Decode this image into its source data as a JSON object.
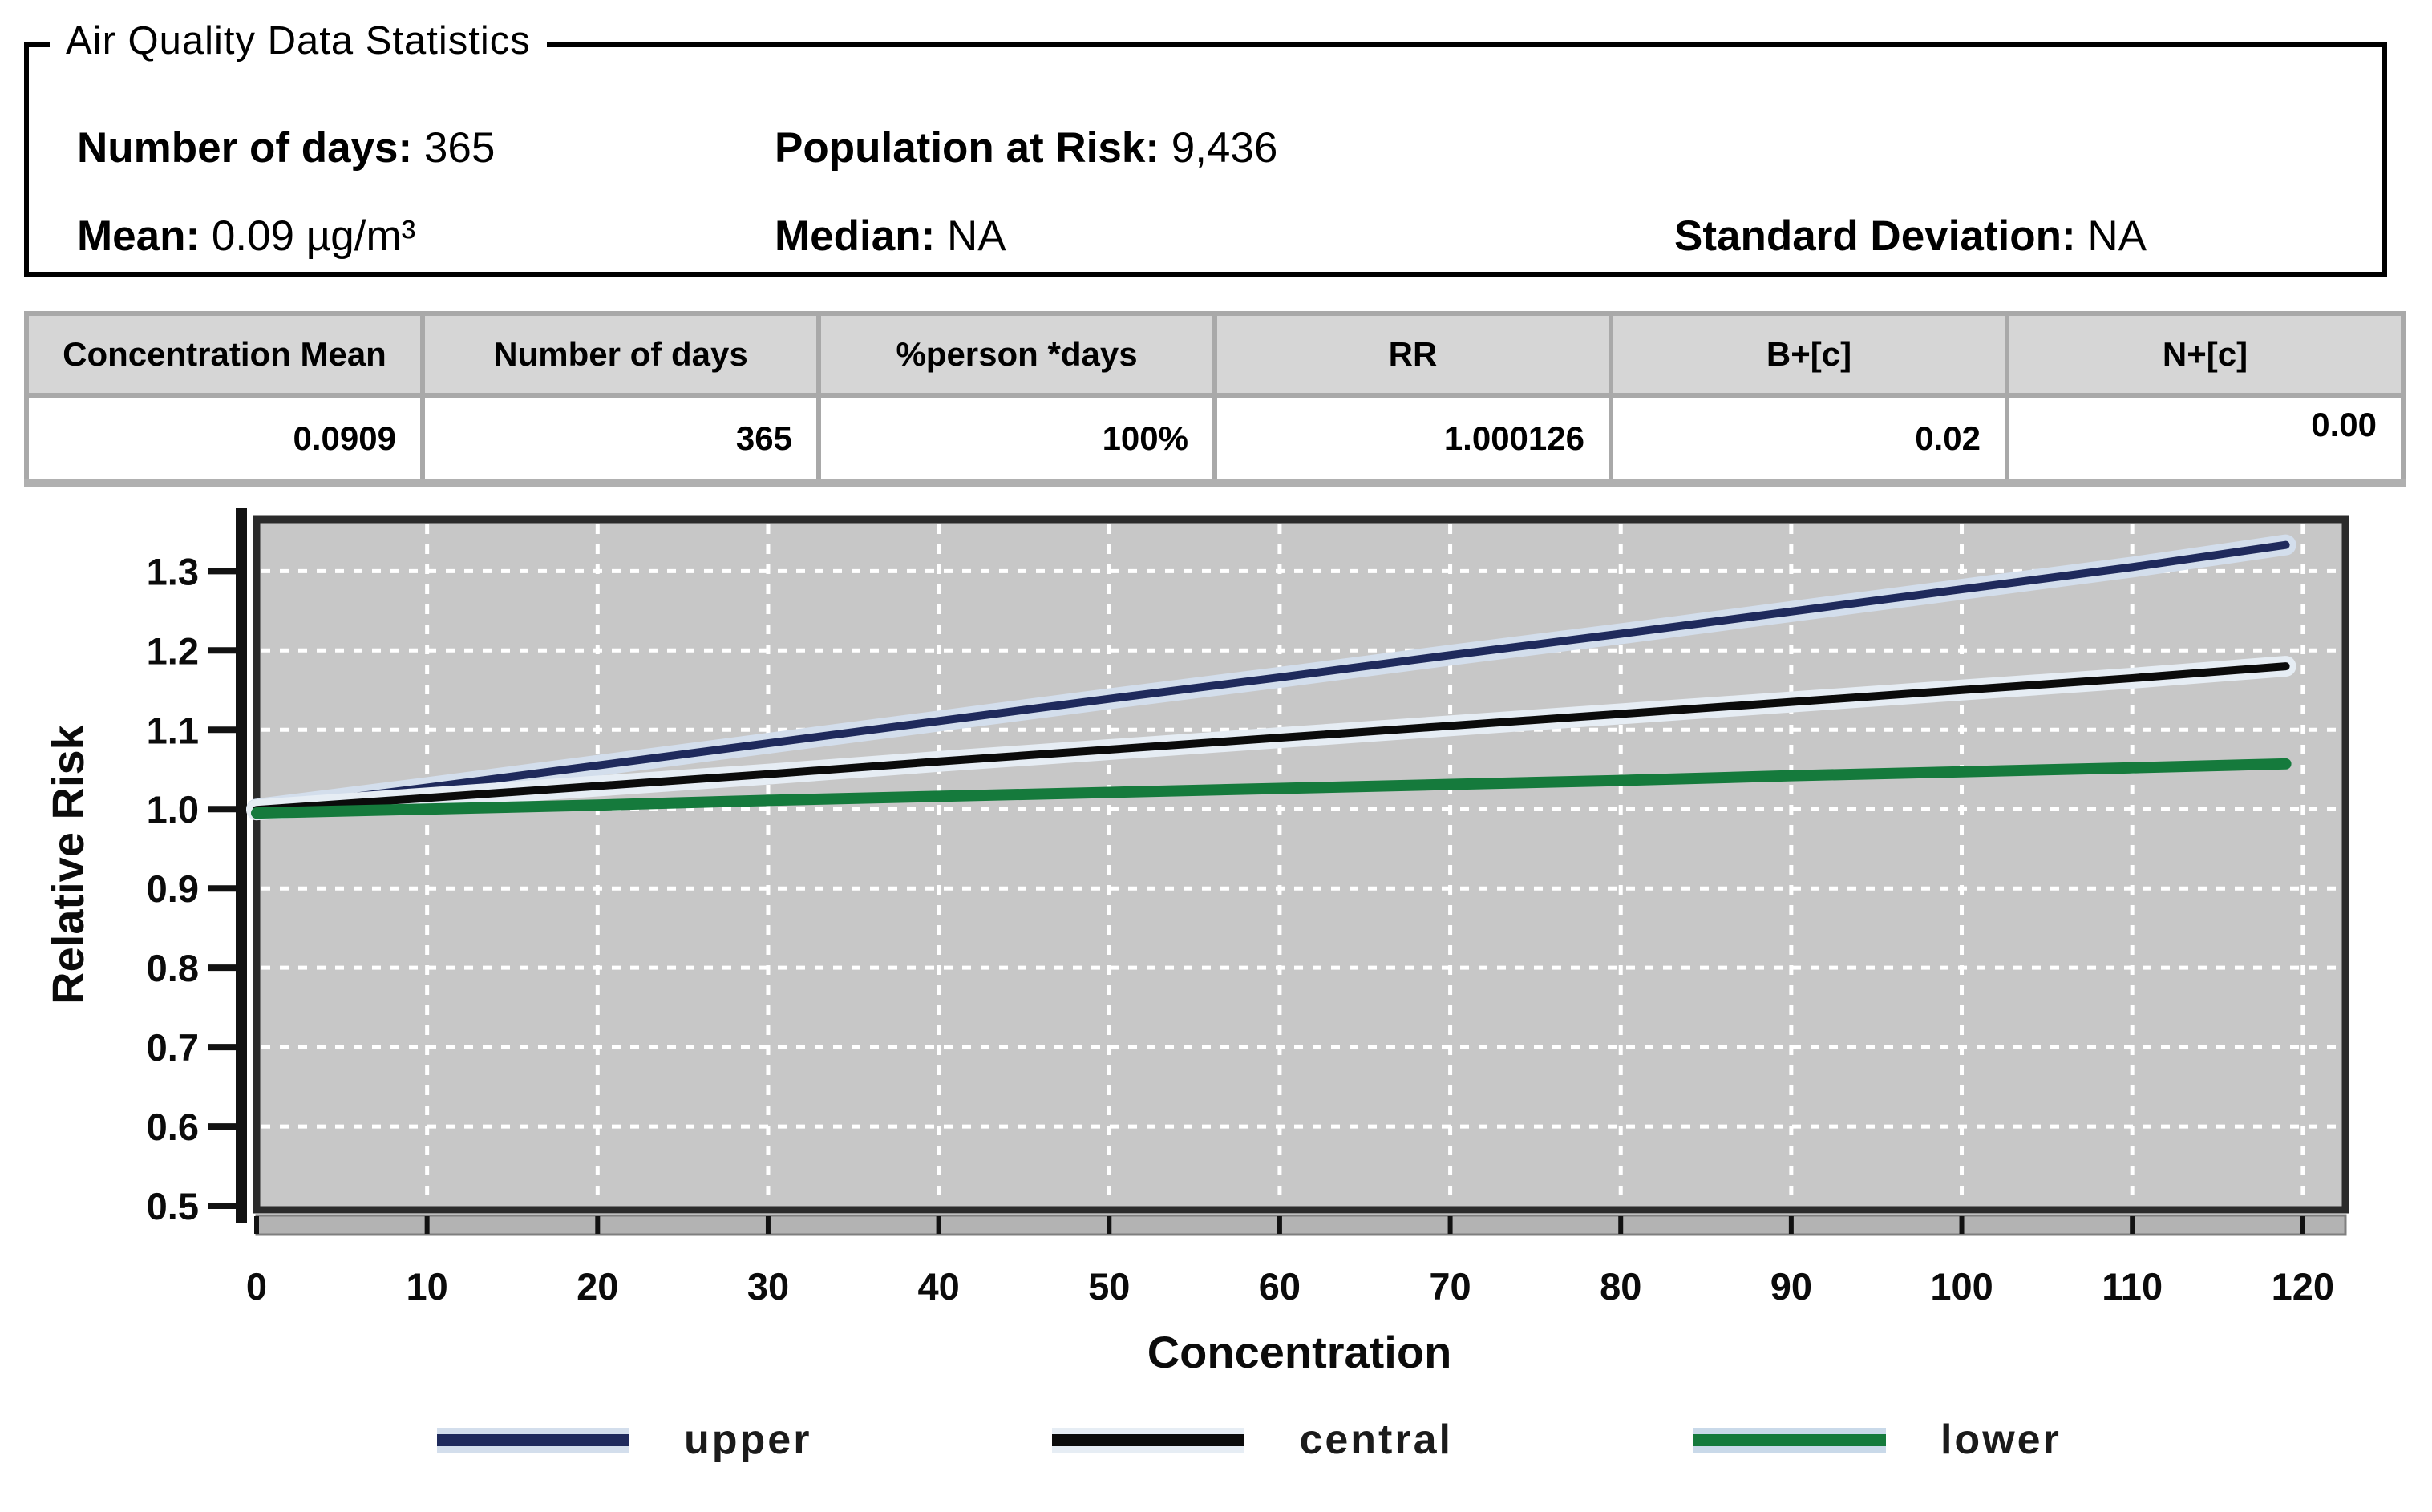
{
  "panel": {
    "title": "Air Quality Data Statistics",
    "stats": [
      {
        "label": "Number of days:",
        "value": "365"
      },
      {
        "label": "Population at Risk:",
        "value": "9,436"
      },
      {
        "label": "Mean:",
        "value": "0.09 µg/m³"
      },
      {
        "label": "Median:",
        "value": "NA"
      },
      {
        "label": "Standard Deviation:",
        "value": "NA"
      }
    ]
  },
  "table": {
    "columns": [
      "Concentration Mean",
      "Number of days",
      "%person *days",
      "RR",
      "B+[c]",
      "N+[c]"
    ],
    "row": [
      "0.0909",
      "365",
      "100%",
      "1.000126",
      "0.02",
      "0.00"
    ]
  },
  "chart_data": {
    "type": "line",
    "title": "",
    "xlabel": "Concentration",
    "ylabel": "Relative Risk",
    "xlim": [
      0,
      122.5
    ],
    "ylim": [
      0.495,
      1.365
    ],
    "xticks": [
      0,
      10,
      20,
      30,
      40,
      50,
      60,
      70,
      80,
      90,
      100,
      110,
      120
    ],
    "yticks": [
      1.3,
      1.2,
      1.1,
      1.0,
      0.9,
      0.8,
      0.7,
      0.6,
      0.5
    ],
    "grid": "white-dashed",
    "plot_bg": "#c7c7c7",
    "frame_color": "#2b2b2b",
    "legend_position": "bottom",
    "x": [
      0,
      10,
      20,
      30,
      40,
      50,
      60,
      70,
      80,
      90,
      100,
      110,
      119
    ],
    "series": [
      {
        "name": "upper",
        "color": "#1f2a5c",
        "halo": "#d3deec",
        "values": [
          1.0,
          1.027,
          1.055,
          1.083,
          1.111,
          1.139,
          1.166,
          1.194,
          1.221,
          1.249,
          1.277,
          1.305,
          1.333
        ]
      },
      {
        "name": "central",
        "color": "#0b0b0b",
        "halo": "#e6edf4",
        "values": [
          0.999,
          1.014,
          1.029,
          1.044,
          1.06,
          1.075,
          1.09,
          1.105,
          1.12,
          1.135,
          1.15,
          1.165,
          1.18
        ]
      },
      {
        "name": "lower",
        "color": "#157a3c",
        "halo": null,
        "swatch_halo": "#c9d9e9",
        "values": [
          0.995,
          1.0,
          1.005,
          1.011,
          1.016,
          1.021,
          1.026,
          1.031,
          1.036,
          1.042,
          1.047,
          1.052,
          1.057
        ]
      }
    ]
  }
}
